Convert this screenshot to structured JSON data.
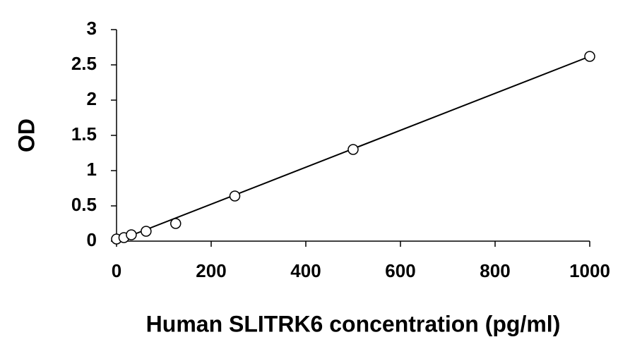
{
  "chart_data": {
    "type": "scatter",
    "x_label": "Human SLITRK6 concentration (pg/ml)",
    "y_label": "OD",
    "series": [
      {
        "color": "#000000",
        "x": [
          0,
          15.6,
          31.25,
          62.5,
          125,
          250,
          500,
          1000
        ],
        "values": [
          0.03,
          0.05,
          0.09,
          0.14,
          0.25,
          0.64,
          1.3,
          2.62
        ]
      }
    ],
    "trendline": {
      "color": "#000000",
      "x": [
        0,
        1000
      ],
      "values": [
        0,
        2.62
      ]
    },
    "xlim": [
      0,
      1000
    ],
    "xticks": [
      0,
      200,
      400,
      600,
      800,
      1000
    ],
    "ylim": [
      0,
      3
    ],
    "yticks": [
      0,
      0.5,
      1,
      1.5,
      2,
      2.5,
      3
    ],
    "grid": false
  }
}
